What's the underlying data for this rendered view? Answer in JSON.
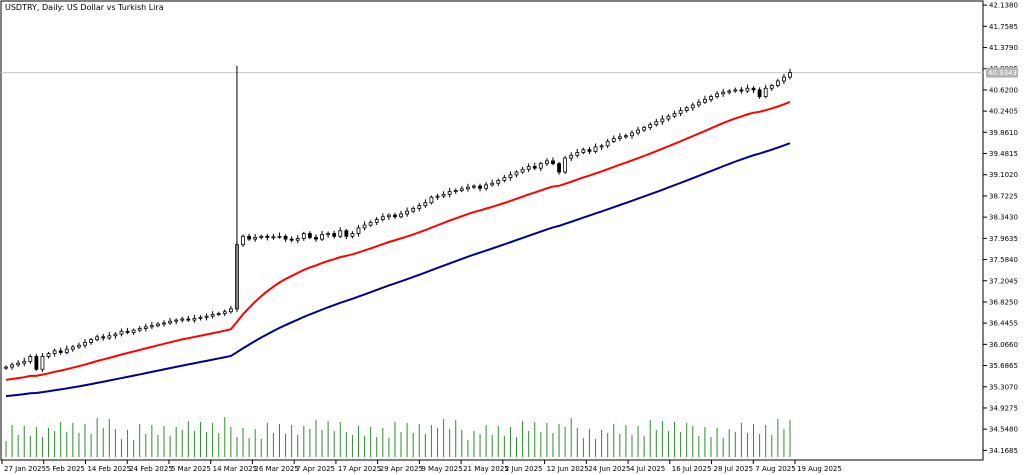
{
  "chart_data": {
    "type": "candlestick",
    "title": "USDTRY, Daily:  US Dollar vs Turkish Lira",
    "y_ticks": [
      "42.1380",
      "41.7585",
      "41.3790",
      "40.9995",
      "40.6200",
      "40.2405",
      "39.8610",
      "39.4815",
      "39.1020",
      "38.7225",
      "38.3430",
      "37.9635",
      "37.5840",
      "37.2045",
      "36.8250",
      "36.4455",
      "36.0660",
      "35.6865",
      "35.3070",
      "34.9275",
      "34.5480",
      "34.1685"
    ],
    "ylim": [
      34.05,
      42.14
    ],
    "x_ticks": [
      "27 Jan 2025",
      "5 Feb 2025",
      "14 Feb 2025",
      "24 Feb 2025",
      "5 Mar 2025",
      "14 Mar 2025",
      "26 Mar 2025",
      "7 Apr 2025",
      "17 Apr 2025",
      "29 Apr 2025",
      "9 May 2025",
      "21 May 2025",
      "2 Jun 2025",
      "12 Jun 2025",
      "24 Jun 2025",
      "4 Jul 2025",
      "16 Jul 2025",
      "28 Jul 2025",
      "7 Aug 2025",
      "19 Aug 2025"
    ],
    "current_price_label": "40.9343",
    "current_price": 40.93,
    "close": [
      35.66,
      35.7,
      35.73,
      35.76,
      35.85,
      35.62,
      35.85,
      35.9,
      35.95,
      35.92,
      35.98,
      36.02,
      36.05,
      36.1,
      36.15,
      36.2,
      36.18,
      36.22,
      36.25,
      36.3,
      36.28,
      36.32,
      36.35,
      36.38,
      36.4,
      36.43,
      36.45,
      36.48,
      36.5,
      36.52,
      36.5,
      36.53,
      36.55,
      36.57,
      36.6,
      36.62,
      36.65,
      36.7,
      37.85,
      38.0,
      37.95,
      37.98,
      38.0,
      37.98,
      37.99,
      38.0,
      37.95,
      37.93,
      37.96,
      38.05,
      37.98,
      37.95,
      38.03,
      38.05,
      38.0,
      38.1,
      38.0,
      38.05,
      38.15,
      38.2,
      38.25,
      38.3,
      38.35,
      38.38,
      38.35,
      38.4,
      38.45,
      38.5,
      38.55,
      38.6,
      38.7,
      38.72,
      38.75,
      38.8,
      38.82,
      38.85,
      38.88,
      38.9,
      38.86,
      38.92,
      38.95,
      39.0,
      39.05,
      39.1,
      39.15,
      39.2,
      39.25,
      39.22,
      39.3,
      39.35,
      39.3,
      39.15,
      39.4,
      39.45,
      39.5,
      39.55,
      39.52,
      39.6,
      39.62,
      39.7,
      39.75,
      39.78,
      39.8,
      39.85,
      39.9,
      39.95,
      40.0,
      40.05,
      40.1,
      40.15,
      40.2,
      40.25,
      40.3,
      40.35,
      40.4,
      40.45,
      40.5,
      40.55,
      40.58,
      40.6,
      40.62,
      40.6,
      40.65,
      40.62,
      40.5,
      40.65,
      40.7,
      40.78,
      40.85,
      40.93
    ],
    "ema_fast_label": "",
    "ema_slow_label": "",
    "volume_label": "",
    "x_labels_raw": [],
    "colors": {
      "grid": "#c8c8c8",
      "ema_fast": "#ff0000",
      "ema_slow": "#00008b",
      "volume": "#2e8b2e",
      "candle": "#000000",
      "price_label_bg": "#b4b4b4"
    }
  }
}
